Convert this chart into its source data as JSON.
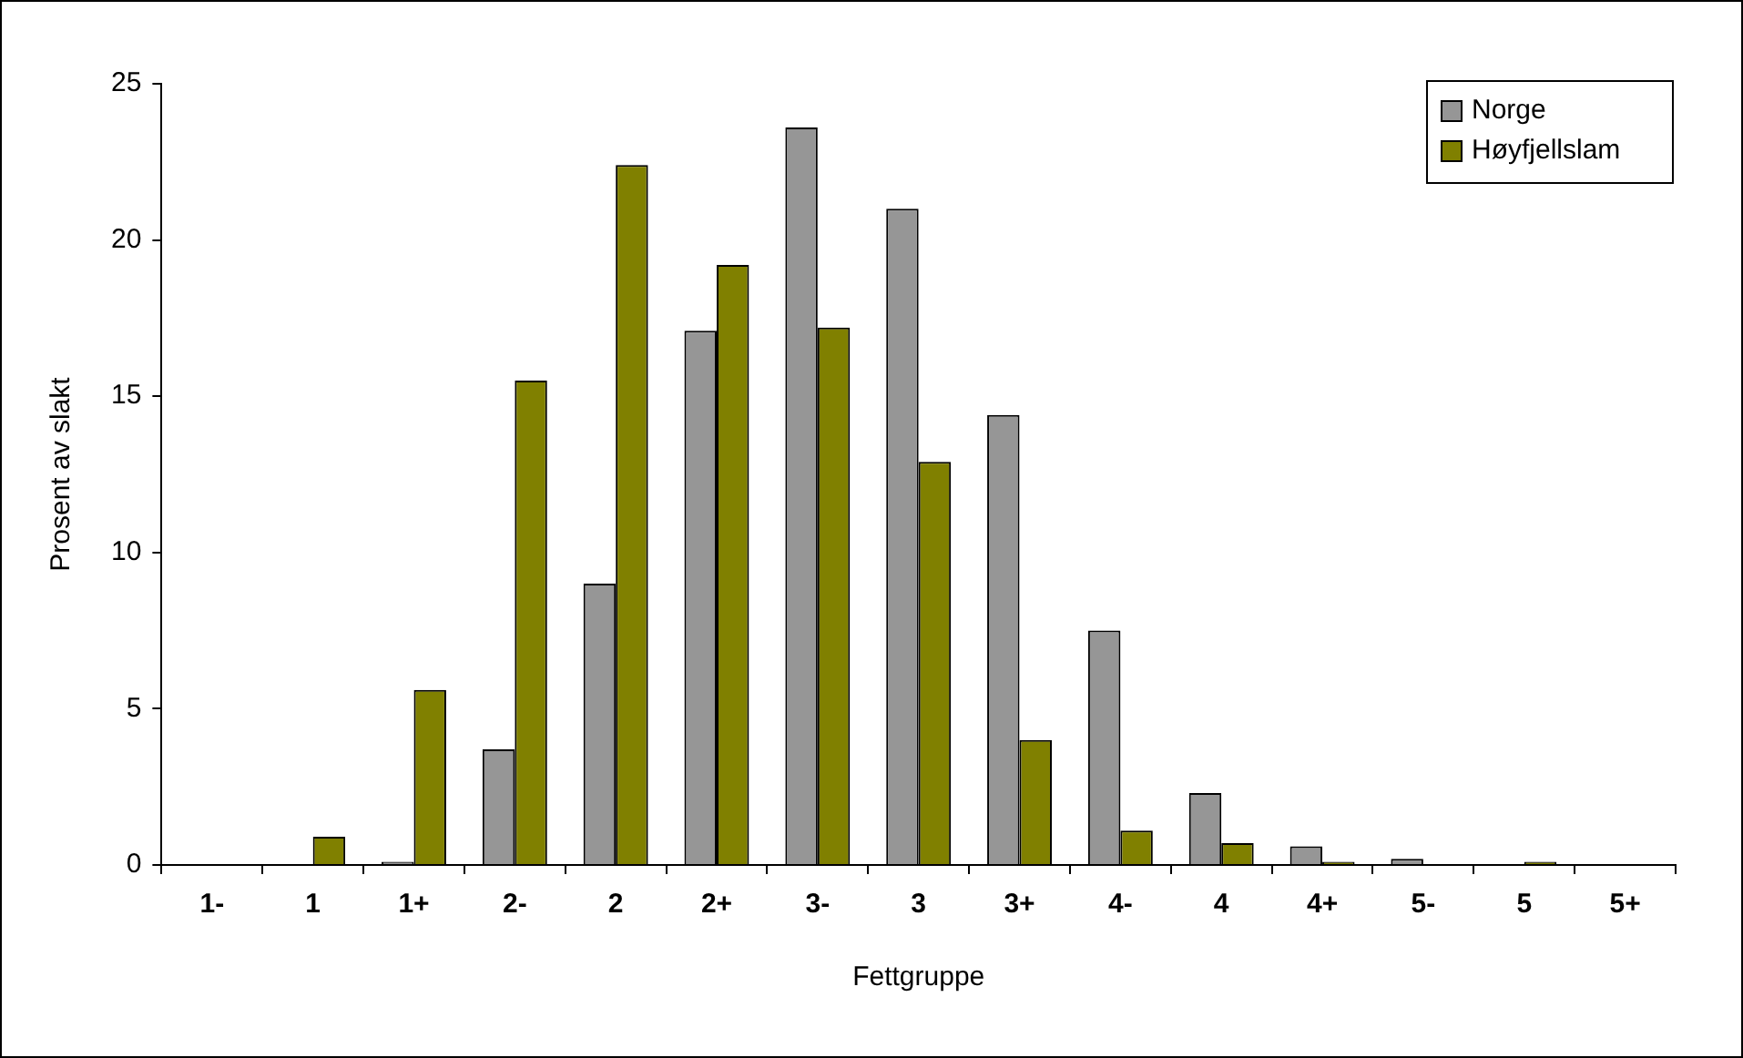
{
  "chart_data": {
    "type": "bar",
    "xlabel": "Fettgruppe",
    "ylabel": "Prosent av slakt",
    "categories": [
      "1-",
      "1",
      "1+",
      "2-",
      "2",
      "2+",
      "3-",
      "3",
      "3+",
      "4-",
      "4",
      "4+",
      "5-",
      "5",
      "5+"
    ],
    "series": [
      {
        "name": "Norge",
        "color": "#969696",
        "values": [
          0,
          0,
          0.1,
          3.7,
          9.0,
          17.1,
          23.6,
          21.0,
          14.4,
          7.5,
          2.3,
          0.6,
          0.2,
          0,
          0
        ]
      },
      {
        "name": "Høyfjellslam",
        "color": "#808000",
        "values": [
          0,
          0.9,
          5.6,
          15.5,
          22.4,
          19.2,
          17.2,
          12.9,
          4.0,
          1.1,
          0.7,
          0.1,
          0,
          0.1,
          0
        ]
      }
    ],
    "ylim": [
      0,
      25
    ],
    "yticks": [
      0,
      5,
      10,
      15,
      20,
      25
    ],
    "grid": false,
    "legend": "top right"
  }
}
